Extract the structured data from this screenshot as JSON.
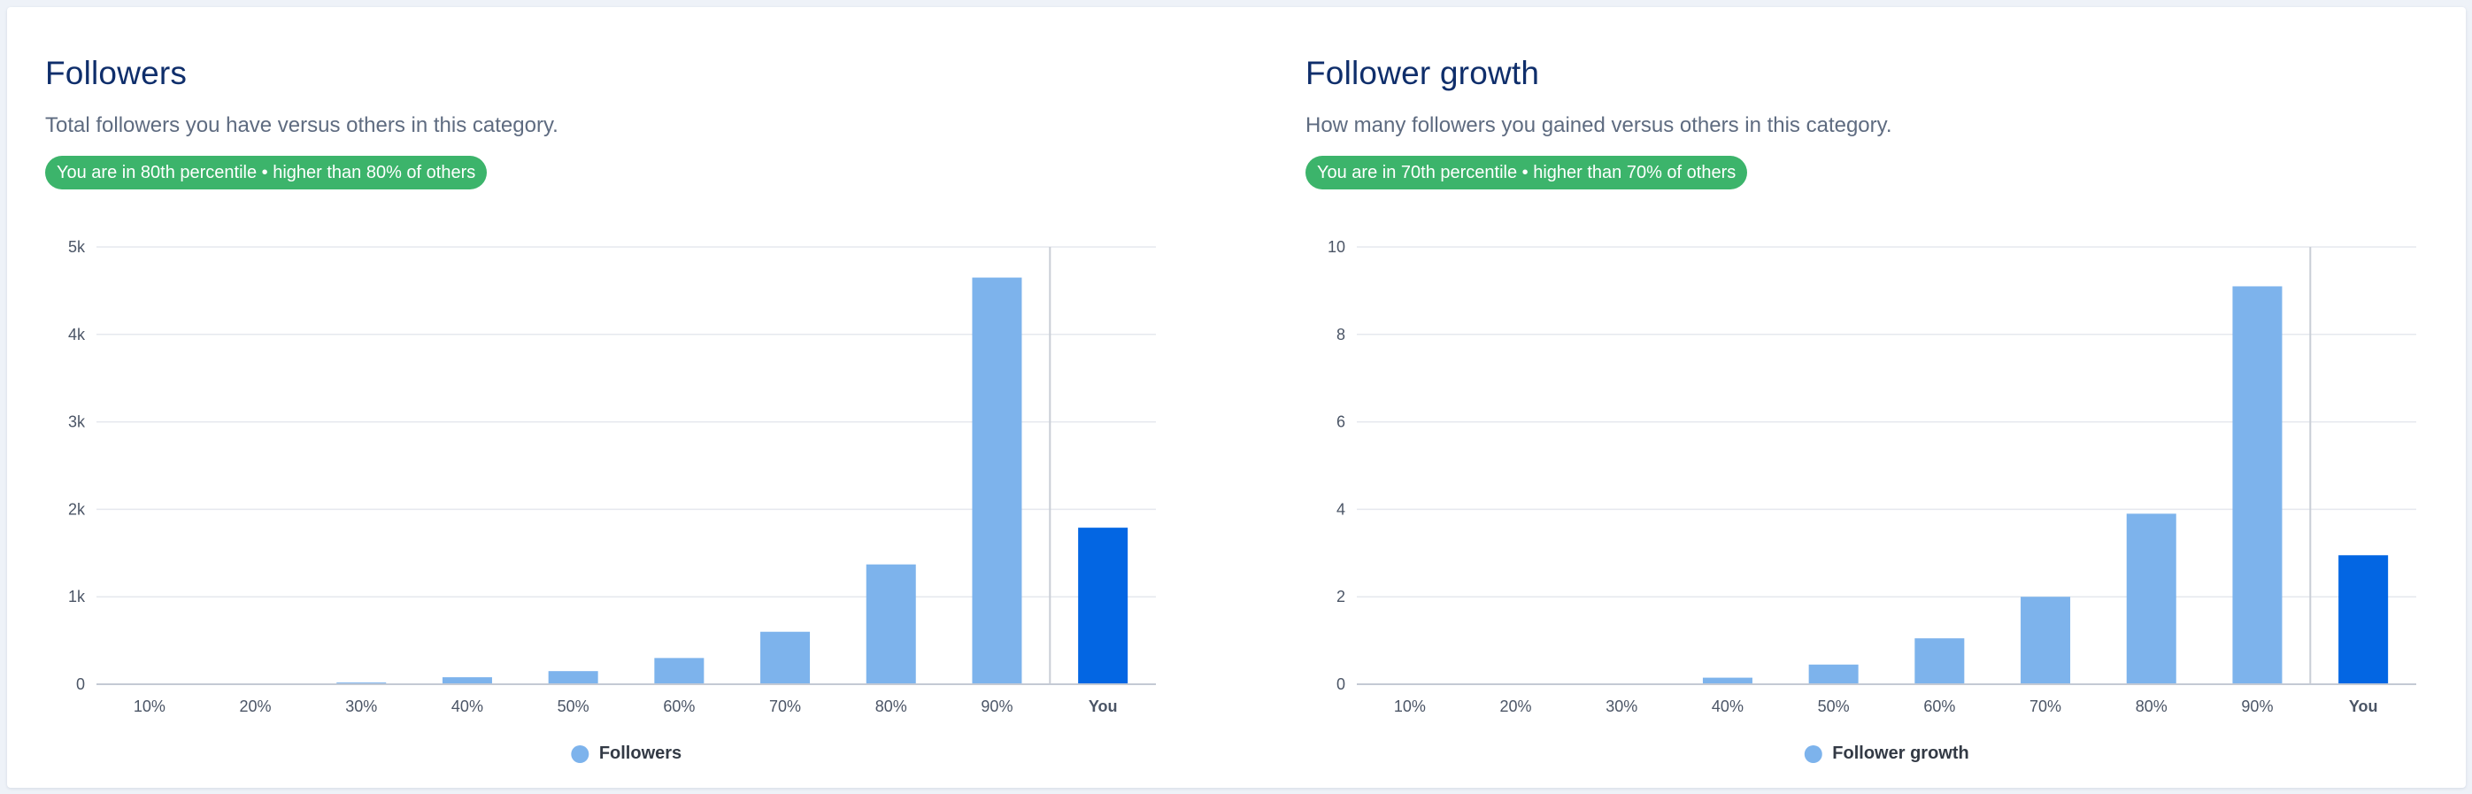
{
  "colors": {
    "bar": "#7db3ec",
    "highlight": "#0366e3",
    "badge": "#3cb46b",
    "grid": "#e5e8ee",
    "divider": "#c9ced6",
    "axis": "#c4cad4"
  },
  "panels": [
    {
      "title": "Followers",
      "subtitle": "Total followers you have versus others in this category.",
      "badge": "You are in 80th percentile • higher than 80% of others",
      "legend": "Followers"
    },
    {
      "title": "Follower growth",
      "subtitle": "How many followers you gained versus others in this category.",
      "badge": "You are in 70th percentile • higher than 70% of others",
      "legend": "Follower growth"
    }
  ],
  "chart_data": [
    {
      "type": "bar",
      "categories": [
        "10%",
        "20%",
        "30%",
        "40%",
        "50%",
        "60%",
        "70%",
        "80%",
        "90%",
        "You"
      ],
      "series": [
        {
          "name": "Followers",
          "values": [
            0,
            0,
            20,
            80,
            150,
            300,
            600,
            1370,
            4650,
            1790
          ]
        }
      ],
      "highlight_index": 9,
      "ylim": [
        0,
        5000
      ],
      "yticks": [
        0,
        1000,
        2000,
        3000,
        4000,
        5000
      ],
      "ytick_labels": [
        "0",
        "1k",
        "2k",
        "3k",
        "4k",
        "5k"
      ],
      "grid": true,
      "legend_position": "bottom-center"
    },
    {
      "type": "bar",
      "categories": [
        "10%",
        "20%",
        "30%",
        "40%",
        "50%",
        "60%",
        "70%",
        "80%",
        "90%",
        "You"
      ],
      "series": [
        {
          "name": "Follower growth",
          "values": [
            0,
            0,
            0,
            0.15,
            0.45,
            1.05,
            2.0,
            3.9,
            9.1,
            2.95
          ]
        }
      ],
      "highlight_index": 9,
      "ylim": [
        0,
        10
      ],
      "yticks": [
        0,
        2,
        4,
        6,
        8,
        10
      ],
      "ytick_labels": [
        "0",
        "2",
        "4",
        "6",
        "8",
        "10"
      ],
      "grid": true,
      "legend_position": "bottom-center"
    }
  ]
}
